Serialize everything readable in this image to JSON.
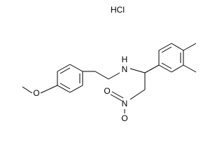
{
  "atoms": {
    "salt": "HCl",
    "amine_h": "H",
    "amine_n": "N",
    "methoxy_o": "O",
    "nitro_o1": "O",
    "nitro_n": "N",
    "nitro_o2": "O"
  }
}
